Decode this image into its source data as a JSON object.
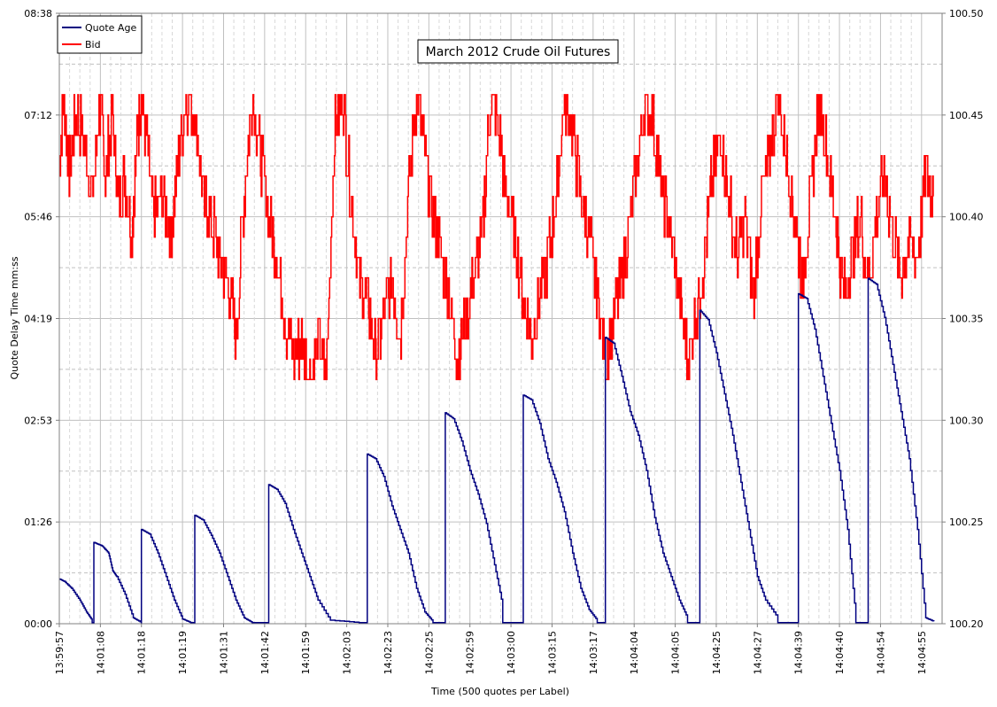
{
  "chart_data": {
    "type": "line",
    "title": "March 2012 Crude Oil Futures",
    "xlabel": "Time (500 quotes per Label)",
    "ylabel_left": "Quote Delay Time mm:ss",
    "ylabel_right": "",
    "x_tick_labels": [
      "13:59:57",
      "14:01:08",
      "14:01:18",
      "14:01:19",
      "14:01:31",
      "14:01:42",
      "14:01:59",
      "14:02:03",
      "14:02:23",
      "14:02:25",
      "14:02:59",
      "14:03:00",
      "14:03:15",
      "14:03:17",
      "14:04:04",
      "14:04:05",
      "14:04:25",
      "14:04:27",
      "14:04:39",
      "14:04:40",
      "14:04:54",
      "14:04:55"
    ],
    "x_tick_index": [
      0,
      500,
      1000,
      1500,
      2000,
      2500,
      3000,
      3500,
      4000,
      4500,
      5000,
      5500,
      6000,
      6500,
      7000,
      7500,
      8000,
      8500,
      9000,
      9500,
      10000,
      10500
    ],
    "x_range": [
      0,
      10750
    ],
    "left_axis": {
      "ticks": [
        "00:00",
        "01:26",
        "02:53",
        "04:19",
        "05:46",
        "07:12",
        "08:38"
      ],
      "range_seconds": [
        0,
        518
      ]
    },
    "right_axis": {
      "ticks": [
        "100.20",
        "100.25",
        "100.30",
        "100.35",
        "100.40",
        "100.45",
        "100.50"
      ],
      "range": [
        100.2,
        100.5
      ]
    },
    "grid": true,
    "legend_position": "top-left",
    "series": [
      {
        "name": "Quote Age",
        "axis": "left",
        "color": "#000080",
        "cycles": [
          {
            "start": 0,
            "end": 400,
            "peak": 38,
            "tail": [
              [
                0,
                38
              ],
              [
                60,
                36
              ],
              [
                150,
                30
              ],
              [
                250,
                20
              ],
              [
                330,
                10
              ],
              [
                400,
                3
              ]
            ]
          },
          {
            "start": 420,
            "end": 1000,
            "peak": 69,
            "tail": [
              [
                420,
                69
              ],
              [
                520,
                66
              ],
              [
                600,
                60
              ],
              [
                650,
                45
              ],
              [
                700,
                40
              ],
              [
                800,
                25
              ],
              [
                900,
                5
              ],
              [
                1000,
                1
              ]
            ]
          },
          {
            "start": 1000,
            "end": 1600,
            "peak": 80,
            "tail": [
              [
                1000,
                80
              ],
              [
                1100,
                76
              ],
              [
                1200,
                60
              ],
              [
                1300,
                40
              ],
              [
                1400,
                20
              ],
              [
                1500,
                4
              ],
              [
                1600,
                1
              ]
            ]
          },
          {
            "start": 1650,
            "end": 2350,
            "peak": 92,
            "tail": [
              [
                1650,
                92
              ],
              [
                1750,
                88
              ],
              [
                1850,
                75
              ],
              [
                1950,
                60
              ],
              [
                2050,
                40
              ],
              [
                2150,
                20
              ],
              [
                2250,
                5
              ],
              [
                2350,
                1
              ]
            ]
          },
          {
            "start": 2550,
            "end": 3650,
            "peak": 118,
            "tail": [
              [
                2550,
                118
              ],
              [
                2650,
                114
              ],
              [
                2750,
                102
              ],
              [
                2850,
                80
              ],
              [
                2950,
                60
              ],
              [
                3050,
                40
              ],
              [
                3150,
                20
              ],
              [
                3300,
                3
              ],
              [
                3650,
                1
              ]
            ]
          },
          {
            "start": 3750,
            "end": 4550,
            "peak": 144,
            "tail": [
              [
                3750,
                144
              ],
              [
                3850,
                140
              ],
              [
                3950,
                125
              ],
              [
                4050,
                100
              ],
              [
                4150,
                80
              ],
              [
                4250,
                60
              ],
              [
                4350,
                30
              ],
              [
                4450,
                10
              ],
              [
                4550,
                2
              ]
            ]
          },
          {
            "start": 4700,
            "end": 5400,
            "peak": 179,
            "tail": [
              [
                4700,
                179
              ],
              [
                4800,
                174
              ],
              [
                4900,
                155
              ],
              [
                5000,
                130
              ],
              [
                5100,
                110
              ],
              [
                5200,
                85
              ],
              [
                5300,
                50
              ],
              [
                5400,
                15
              ]
            ]
          },
          {
            "start": 5650,
            "end": 6550,
            "peak": 194,
            "tail": [
              [
                5650,
                194
              ],
              [
                5750,
                190
              ],
              [
                5850,
                170
              ],
              [
                5950,
                140
              ],
              [
                6050,
                120
              ],
              [
                6150,
                95
              ],
              [
                6250,
                60
              ],
              [
                6350,
                30
              ],
              [
                6450,
                12
              ],
              [
                6550,
                3
              ]
            ]
          },
          {
            "start": 6650,
            "end": 7650,
            "peak": 243,
            "tail": [
              [
                6650,
                243
              ],
              [
                6750,
                238
              ],
              [
                6850,
                210
              ],
              [
                6950,
                180
              ],
              [
                7050,
                160
              ],
              [
                7150,
                130
              ],
              [
                7250,
                90
              ],
              [
                7350,
                60
              ],
              [
                7450,
                40
              ],
              [
                7550,
                20
              ],
              [
                7650,
                5
              ]
            ]
          },
          {
            "start": 7800,
            "end": 8750,
            "peak": 266,
            "tail": [
              [
                7800,
                266
              ],
              [
                7900,
                258
              ],
              [
                8000,
                230
              ],
              [
                8100,
                195
              ],
              [
                8200,
                160
              ],
              [
                8300,
                120
              ],
              [
                8400,
                80
              ],
              [
                8500,
                40
              ],
              [
                8600,
                20
              ],
              [
                8750,
                5
              ]
            ]
          },
          {
            "start": 9000,
            "end": 9700,
            "peak": 280,
            "tail": [
              [
                9000,
                280
              ],
              [
                9100,
                276
              ],
              [
                9200,
                250
              ],
              [
                9300,
                210
              ],
              [
                9400,
                170
              ],
              [
                9500,
                130
              ],
              [
                9600,
                80
              ],
              [
                9700,
                5
              ]
            ]
          },
          {
            "start": 9850,
            "end": 10650,
            "peak": 293,
            "tail": [
              [
                9850,
                293
              ],
              [
                9950,
                288
              ],
              [
                10050,
                260
              ],
              [
                10150,
                220
              ],
              [
                10250,
                180
              ],
              [
                10350,
                140
              ],
              [
                10450,
                80
              ],
              [
                10550,
                5
              ],
              [
                10650,
                2
              ]
            ]
          }
        ]
      },
      {
        "name": "Bid",
        "axis": "right",
        "color": "#ff0000",
        "points": [
          [
            0,
            100.43
          ],
          [
            60,
            100.46
          ],
          [
            120,
            100.42
          ],
          [
            200,
            100.45
          ],
          [
            300,
            100.44
          ],
          [
            400,
            100.41
          ],
          [
            500,
            100.46
          ],
          [
            560,
            100.42
          ],
          [
            640,
            100.45
          ],
          [
            720,
            100.41
          ],
          [
            800,
            100.42
          ],
          [
            880,
            100.39
          ],
          [
            950,
            100.44
          ],
          [
            1000,
            100.46
          ],
          [
            1080,
            100.43
          ],
          [
            1150,
            100.4
          ],
          [
            1250,
            100.41
          ],
          [
            1350,
            100.39
          ],
          [
            1450,
            100.43
          ],
          [
            1550,
            100.46
          ],
          [
            1650,
            100.45
          ],
          [
            1750,
            100.41
          ],
          [
            1850,
            100.4
          ],
          [
            1950,
            100.38
          ],
          [
            2050,
            100.37
          ],
          [
            2150,
            100.34
          ],
          [
            2250,
            100.41
          ],
          [
            2350,
            100.46
          ],
          [
            2450,
            100.43
          ],
          [
            2550,
            100.4
          ],
          [
            2650,
            100.38
          ],
          [
            2750,
            100.35
          ],
          [
            2850,
            100.33
          ],
          [
            2950,
            100.34
          ],
          [
            3050,
            100.32
          ],
          [
            3150,
            100.34
          ],
          [
            3250,
            100.32
          ],
          [
            3350,
            100.44
          ],
          [
            3450,
            100.46
          ],
          [
            3550,
            100.41
          ],
          [
            3650,
            100.37
          ],
          [
            3750,
            100.36
          ],
          [
            3850,
            100.33
          ],
          [
            3950,
            100.35
          ],
          [
            4050,
            100.37
          ],
          [
            4150,
            100.34
          ],
          [
            4250,
            100.41
          ],
          [
            4350,
            100.46
          ],
          [
            4450,
            100.43
          ],
          [
            4550,
            100.4
          ],
          [
            4650,
            100.38
          ],
          [
            4750,
            100.36
          ],
          [
            4850,
            100.33
          ],
          [
            4950,
            100.35
          ],
          [
            5050,
            100.37
          ],
          [
            5150,
            100.39
          ],
          [
            5250,
            100.46
          ],
          [
            5350,
            100.44
          ],
          [
            5450,
            100.41
          ],
          [
            5550,
            100.39
          ],
          [
            5650,
            100.36
          ],
          [
            5750,
            100.34
          ],
          [
            5850,
            100.36
          ],
          [
            5950,
            100.38
          ],
          [
            6050,
            100.41
          ],
          [
            6150,
            100.46
          ],
          [
            6250,
            100.44
          ],
          [
            6350,
            100.41
          ],
          [
            6450,
            100.39
          ],
          [
            6550,
            100.36
          ],
          [
            6650,
            100.33
          ],
          [
            6750,
            100.35
          ],
          [
            6850,
            100.37
          ],
          [
            6950,
            100.4
          ],
          [
            7050,
            100.43
          ],
          [
            7150,
            100.46
          ],
          [
            7250,
            100.44
          ],
          [
            7350,
            100.41
          ],
          [
            7450,
            100.39
          ],
          [
            7550,
            100.36
          ],
          [
            7650,
            100.33
          ],
          [
            7750,
            100.35
          ],
          [
            7850,
            100.38
          ],
          [
            7950,
            100.42
          ],
          [
            8050,
            100.44
          ],
          [
            8150,
            100.41
          ],
          [
            8250,
            100.38
          ],
          [
            8350,
            100.4
          ],
          [
            8450,
            100.36
          ],
          [
            8550,
            100.41
          ],
          [
            8650,
            100.43
          ],
          [
            8750,
            100.46
          ],
          [
            8850,
            100.43
          ],
          [
            8950,
            100.4
          ],
          [
            9050,
            100.37
          ],
          [
            9150,
            100.41
          ],
          [
            9250,
            100.46
          ],
          [
            9350,
            100.43
          ],
          [
            9450,
            100.4
          ],
          [
            9550,
            100.36
          ],
          [
            9650,
            100.38
          ],
          [
            9750,
            100.4
          ],
          [
            9850,
            100.37
          ],
          [
            9950,
            100.4
          ],
          [
            10050,
            100.42
          ],
          [
            10150,
            100.39
          ],
          [
            10250,
            100.37
          ],
          [
            10350,
            100.39
          ],
          [
            10450,
            100.38
          ],
          [
            10550,
            100.42
          ],
          [
            10650,
            100.41
          ]
        ]
      }
    ]
  }
}
